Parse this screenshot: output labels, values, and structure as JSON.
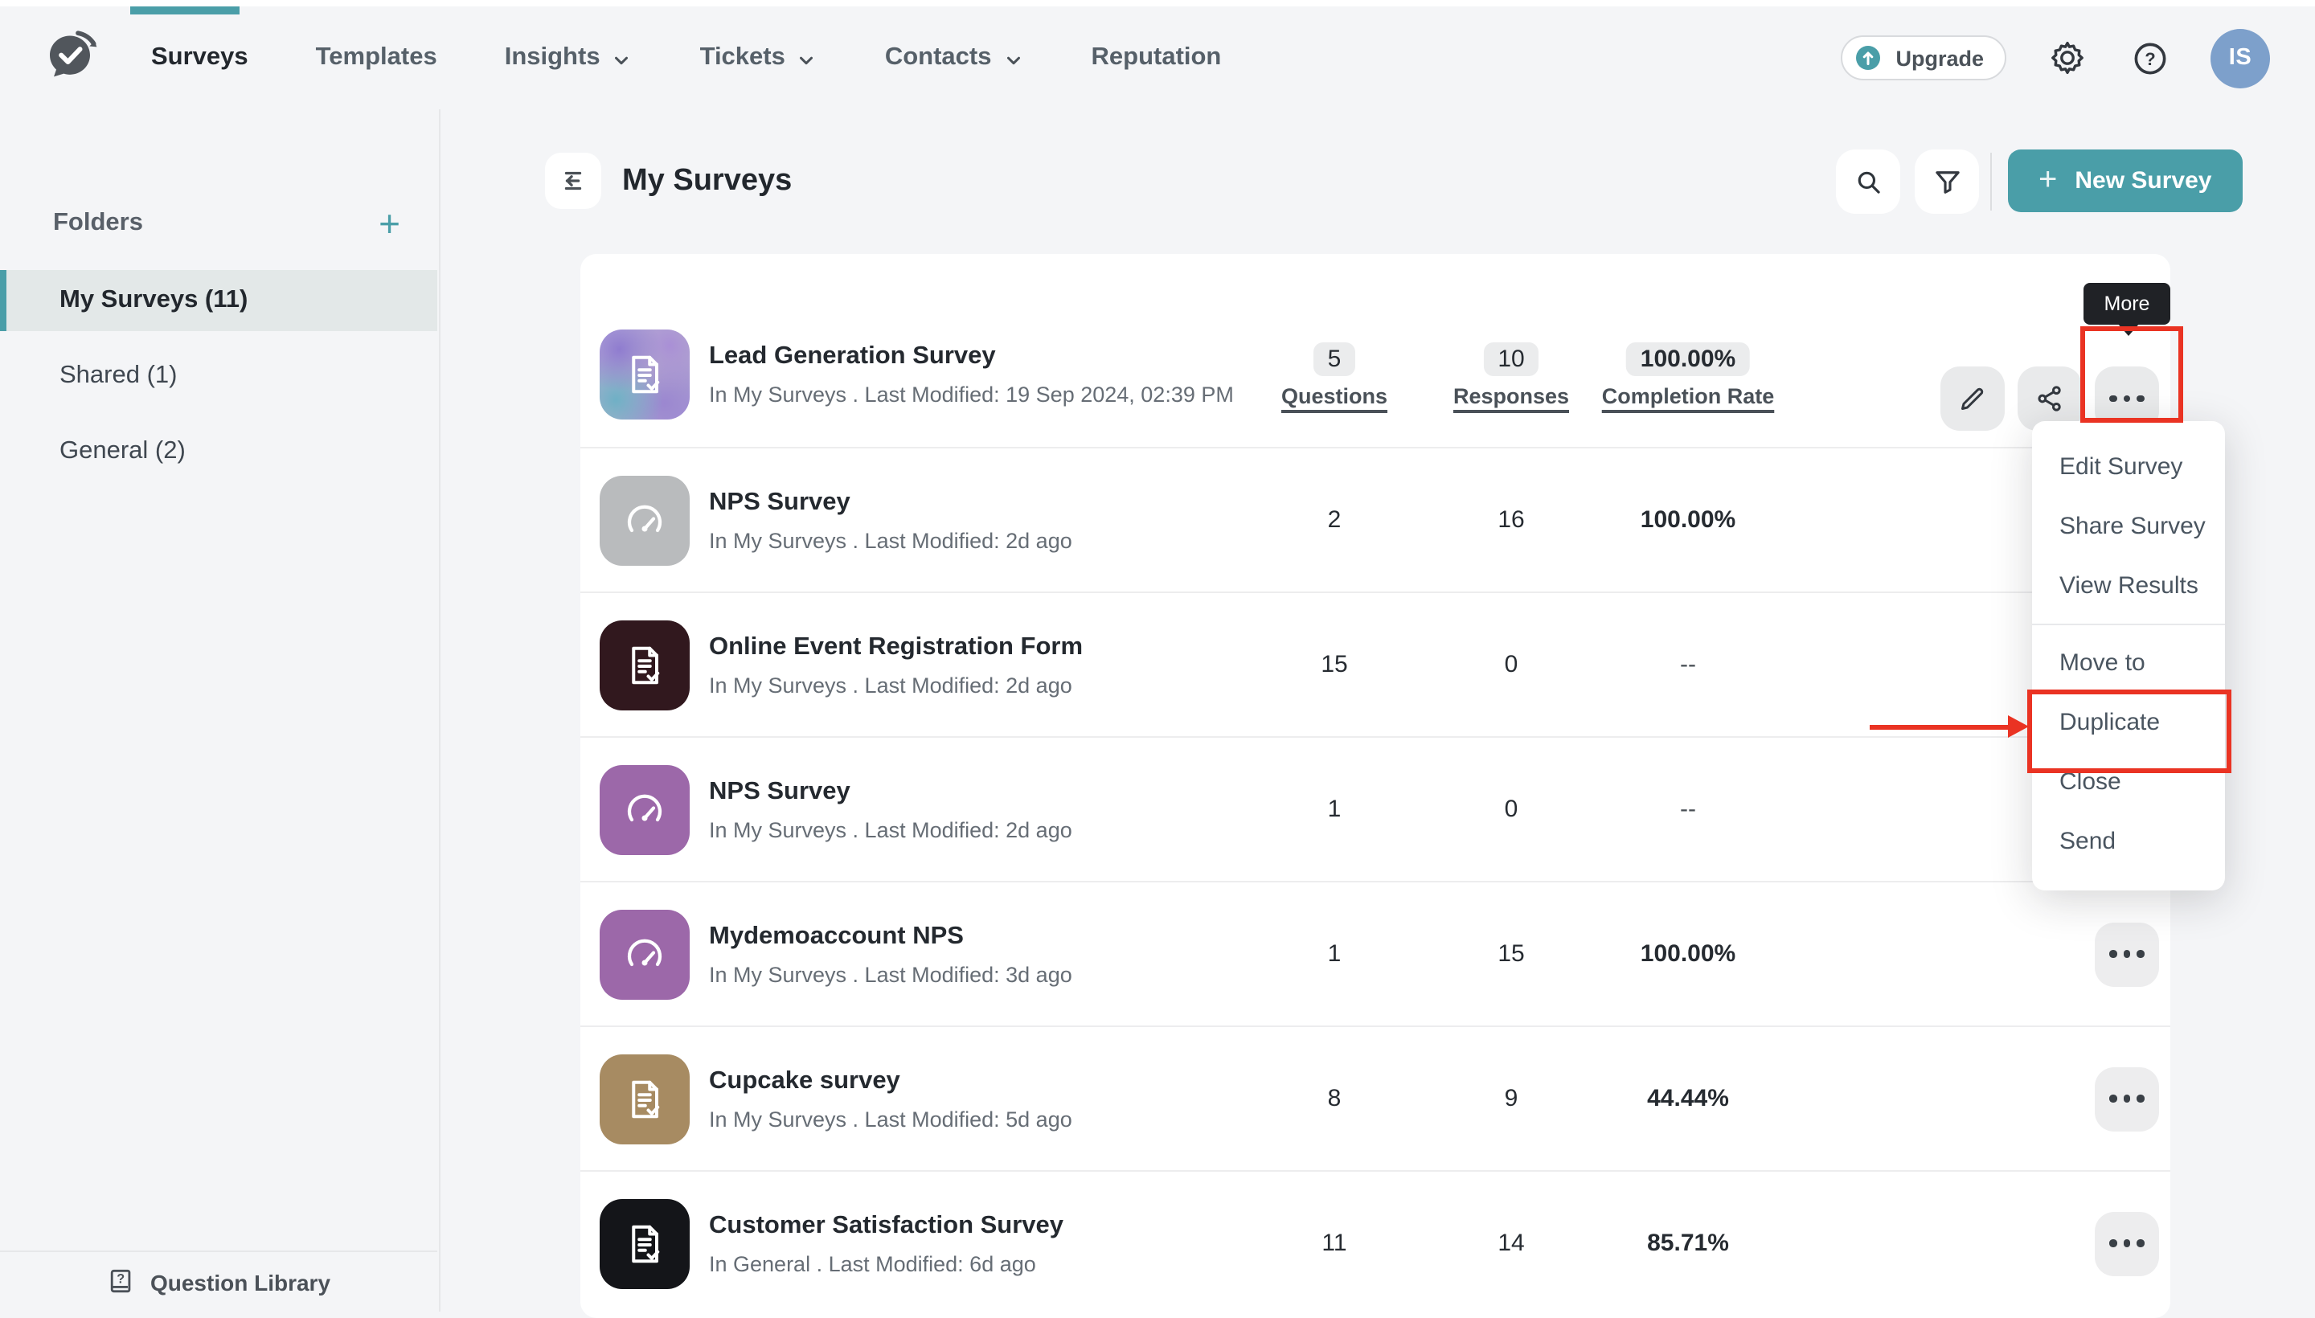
{
  "colors": {
    "accent_teal": "#4a9ea8",
    "annotation_red": "#ea3323",
    "avatar_blue": "#7da0cb",
    "selected_folder_bg": "#e3e8e8",
    "card_bg": "#ffffff",
    "page_bg": "#f4f5f7"
  },
  "nav": {
    "items": [
      {
        "label": "Surveys",
        "active": true,
        "dropdown": false
      },
      {
        "label": "Templates",
        "active": false,
        "dropdown": false
      },
      {
        "label": "Insights",
        "active": false,
        "dropdown": true
      },
      {
        "label": "Tickets",
        "active": false,
        "dropdown": true
      },
      {
        "label": "Contacts",
        "active": false,
        "dropdown": true
      },
      {
        "label": "Reputation",
        "active": false,
        "dropdown": false
      }
    ],
    "upgrade_label": "Upgrade"
  },
  "user": {
    "initials": "IS"
  },
  "sidebar": {
    "folders_title": "Folders",
    "add_icon": "+",
    "items": [
      {
        "label": "My Surveys (11)",
        "active": true
      },
      {
        "label": "Shared (1)",
        "active": false
      },
      {
        "label": "General (2)",
        "active": false
      }
    ],
    "question_library_label": "Question Library"
  },
  "header": {
    "title": "My Surveys",
    "new_survey_label": "New Survey",
    "new_survey_plus": "+"
  },
  "surveys": {
    "columns": {
      "questions": "Questions",
      "responses": "Responses",
      "completion": "Completion Rate"
    },
    "rows": [
      {
        "title": "Lead Generation Survey",
        "meta": "In My Surveys . Last Modified: 19 Sep 2024, 02:39 PM",
        "questions": "5",
        "responses": "10",
        "completion": "100.00%",
        "thumb_icon": "doc-check",
        "thumb_style": "gradient",
        "show_column_labels": true,
        "actions": "full"
      },
      {
        "title": "NPS Survey",
        "meta": "In My Surveys . Last Modified: 2d ago",
        "questions": "2",
        "responses": "16",
        "completion": "100.00%",
        "thumb_icon": "gauge",
        "thumb_style": "#b9bbbd",
        "show_column_labels": false,
        "actions": "hidden"
      },
      {
        "title": "Online Event Registration Form",
        "meta": "In My Surveys . Last Modified: 2d ago",
        "questions": "15",
        "responses": "0",
        "completion": "--",
        "thumb_icon": "doc-check",
        "thumb_style": "#31181e",
        "show_column_labels": false,
        "actions": "hidden"
      },
      {
        "title": "NPS Survey",
        "meta": "In My Surveys . Last Modified: 2d ago",
        "questions": "1",
        "responses": "0",
        "completion": "--",
        "thumb_icon": "gauge",
        "thumb_style": "#9c68a9",
        "show_column_labels": false,
        "actions": "hidden"
      },
      {
        "title": "Mydemoaccount NPS",
        "meta": "In My Surveys . Last Modified: 3d ago",
        "questions": "1",
        "responses": "15",
        "completion": "100.00%",
        "thumb_icon": "gauge",
        "thumb_style": "#9c68a9",
        "show_column_labels": false,
        "actions": "more"
      },
      {
        "title": "Cupcake survey",
        "meta": "In My Surveys . Last Modified: 5d ago",
        "questions": "8",
        "responses": "9",
        "completion": "44.44%",
        "thumb_icon": "doc-check",
        "thumb_style": "#a78b62",
        "show_column_labels": false,
        "actions": "more"
      },
      {
        "title": "Customer Satisfaction Survey",
        "meta": "In General . Last Modified: 6d ago",
        "questions": "11",
        "responses": "14",
        "completion": "85.71%",
        "thumb_icon": "doc-check",
        "thumb_style": "#141519",
        "show_column_labels": false,
        "actions": "more"
      }
    ]
  },
  "menu": {
    "tooltip": "More",
    "groups": [
      [
        "Edit Survey",
        "Share Survey",
        "View Results"
      ],
      [
        "Move to",
        "Duplicate",
        "Close",
        "Send"
      ]
    ],
    "annotated_item": "Duplicate"
  }
}
